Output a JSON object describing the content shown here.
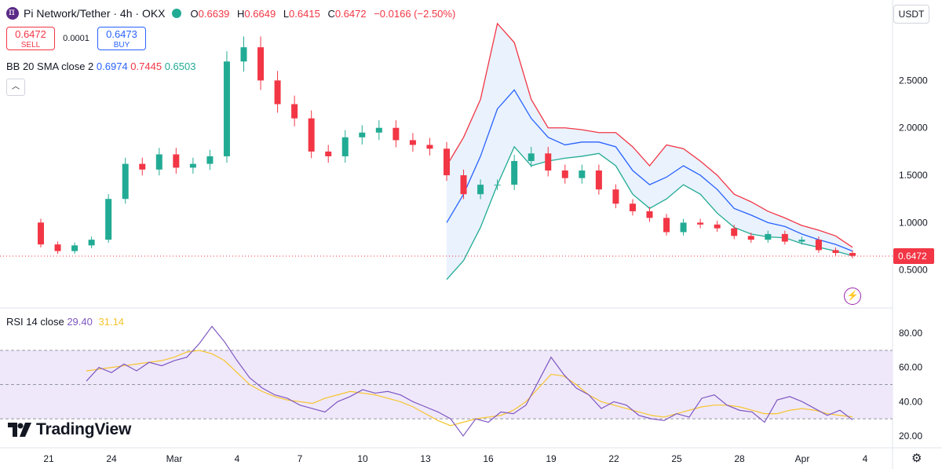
{
  "header": {
    "symbol": "Pi Network/Tether · 4h · OKX",
    "o_label": "O",
    "o": "0.6639",
    "h_label": "H",
    "h": "0.6649",
    "l_label": "L",
    "l": "0.6415",
    "c_label": "C",
    "c": "0.6472",
    "change": "−0.0166 (−2.50%)"
  },
  "trade": {
    "sell_price": "0.6472",
    "sell_label": "SELL",
    "spread": "0.0001",
    "buy_price": "0.6473",
    "buy_label": "BUY"
  },
  "indicator": {
    "name": "BB 20 SMA close 2",
    "basis": "0.6974",
    "upper": "0.7445",
    "lower": "0.6503"
  },
  "rsi": {
    "name": "RSI 14 close",
    "value": "29.40",
    "ma": "31.14"
  },
  "currency": "USDT",
  "brand": "TradingView",
  "colors": {
    "up": "#22ab94",
    "down": "#f23645",
    "basis": "#2962ff",
    "upper": "#f23645",
    "lower": "#22ab94",
    "band_fill": "#e3effd",
    "rsi": "#7e57c2",
    "rsi_ma": "#f7c42d",
    "rsi_band": "#efe8fa"
  },
  "chart_data": [
    {
      "type": "candlestick",
      "title": "Pi Network/Tether · 4h · OKX",
      "x_ticks": [
        "21",
        "24",
        "Mar",
        "4",
        "7",
        "10",
        "13",
        "16",
        "19",
        "22",
        "25",
        "28",
        "Apr",
        "4"
      ],
      "y_ticks": [
        "2.5000",
        "2.0000",
        "1.5000",
        "1.0000",
        "0.5000"
      ],
      "ylim": [
        0.1,
        3.1
      ],
      "last_price": "0.6472",
      "close_series": [
        0.77,
        0.7,
        0.76,
        0.82,
        1.25,
        1.62,
        1.56,
        1.72,
        1.58,
        1.62,
        1.7,
        2.7,
        2.85,
        2.5,
        2.25,
        2.1,
        1.75,
        1.7,
        1.9,
        1.95,
        2.0,
        1.87,
        1.82,
        1.78,
        1.5,
        1.3,
        1.4,
        1.4,
        1.65,
        1.73,
        1.55,
        1.47,
        1.55,
        1.35,
        1.2,
        1.12,
        1.05,
        0.9,
        1.0,
        0.98,
        0.94,
        0.86,
        0.82,
        0.88,
        0.8,
        0.82,
        0.71,
        0.68,
        0.65
      ],
      "series": [
        {
          "name": "BB basis",
          "x": [
            24,
            25,
            26,
            27,
            28,
            29,
            30,
            31,
            32,
            33,
            34,
            35,
            36,
            37,
            38,
            39,
            40,
            41,
            42,
            43,
            44,
            45,
            46,
            47,
            48
          ],
          "values": [
            1.0,
            1.3,
            1.7,
            2.2,
            2.4,
            2.1,
            1.9,
            1.82,
            1.85,
            1.85,
            1.8,
            1.55,
            1.4,
            1.48,
            1.6,
            1.5,
            1.35,
            1.15,
            1.08,
            1.0,
            0.96,
            0.88,
            0.82,
            0.77,
            0.7
          ]
        },
        {
          "name": "BB upper",
          "x": [
            24,
            25,
            26,
            27,
            28,
            29,
            30,
            31,
            32,
            33,
            34,
            35,
            36,
            37,
            38,
            39,
            40,
            41,
            42,
            43,
            44,
            45,
            46,
            47,
            48
          ],
          "values": [
            1.6,
            1.9,
            2.3,
            3.1,
            2.9,
            2.3,
            2.0,
            2.0,
            1.98,
            1.95,
            1.95,
            1.8,
            1.6,
            1.82,
            1.78,
            1.65,
            1.5,
            1.3,
            1.22,
            1.12,
            1.05,
            0.97,
            0.92,
            0.86,
            0.74
          ]
        },
        {
          "name": "BB lower",
          "x": [
            24,
            25,
            26,
            27,
            28,
            29,
            30,
            31,
            32,
            33,
            34,
            35,
            36,
            37,
            38,
            39,
            40,
            41,
            42,
            43,
            44,
            45,
            46,
            47,
            48
          ],
          "values": [
            0.4,
            0.6,
            0.95,
            1.4,
            1.8,
            1.6,
            1.65,
            1.68,
            1.7,
            1.73,
            1.6,
            1.3,
            1.15,
            1.25,
            1.4,
            1.3,
            1.1,
            0.95,
            0.88,
            0.85,
            0.84,
            0.78,
            0.74,
            0.7,
            0.65
          ]
        }
      ]
    },
    {
      "type": "line",
      "title": "RSI 14 close",
      "y_ticks": [
        "80.00",
        "60.00",
        "40.00",
        "20.00"
      ],
      "ylim": [
        14,
        92
      ],
      "bands": [
        30,
        50,
        70
      ],
      "series": [
        {
          "name": "RSI",
          "values": [
            52,
            60,
            57,
            62,
            58,
            63,
            61,
            64,
            66,
            74,
            84,
            75,
            64,
            54,
            48,
            44,
            42,
            38,
            36,
            34,
            40,
            43,
            47,
            45,
            46,
            44,
            40,
            37,
            34,
            30,
            20,
            30,
            28,
            34,
            33,
            38,
            52,
            66,
            56,
            48,
            44,
            36,
            40,
            38,
            32,
            30,
            29,
            33,
            31,
            42,
            44,
            38,
            35,
            34,
            28,
            41,
            43,
            40,
            36,
            32,
            35,
            29.4
          ]
        },
        {
          "name": "RSI MA",
          "values": [
            58,
            59,
            60,
            61,
            62,
            63,
            64,
            66,
            69,
            70,
            68,
            64,
            57,
            50,
            46,
            43,
            41,
            40,
            39,
            42,
            44,
            46,
            45,
            44,
            42,
            40,
            37,
            33,
            29,
            26,
            28,
            30,
            31,
            32,
            35,
            40,
            48,
            56,
            55,
            50,
            44,
            40,
            38,
            36,
            34,
            32,
            31,
            33,
            35,
            37,
            38,
            38,
            37,
            35,
            33,
            33,
            35,
            36,
            35,
            33,
            32,
            31.14
          ]
        }
      ]
    }
  ]
}
